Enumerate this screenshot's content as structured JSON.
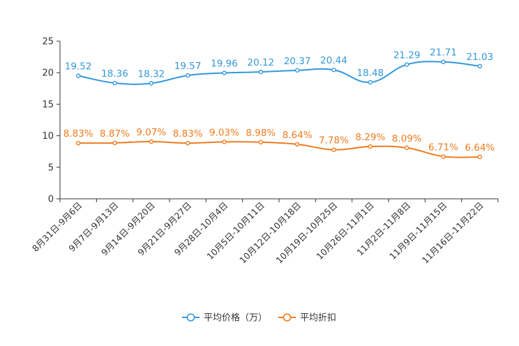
{
  "chart_data": {
    "type": "line",
    "categories": [
      "8月31日-9月6日",
      "9月7日-9月13日",
      "9月14日-9月20日",
      "9月21日-9月27日",
      "9月28日-10月4日",
      "10月5日-10月11日",
      "10月12日-10月18日",
      "10月19日-10月25日",
      "10月26日-11月1日",
      "11月2日-11月8日",
      "11月9日-11月15日",
      "11月16日-11月22日"
    ],
    "series": [
      {
        "name": "平均价格（万）",
        "color": "#3398DB",
        "values": [
          19.52,
          18.36,
          18.32,
          19.57,
          19.96,
          20.12,
          20.37,
          20.44,
          18.48,
          21.29,
          21.71,
          21.03
        ],
        "labels": [
          "19.52",
          "18.36",
          "18.32",
          "19.57",
          "19.96",
          "20.12",
          "20.37",
          "20.44",
          "18.48",
          "21.29",
          "21.71",
          "21.03"
        ]
      },
      {
        "name": "平均折扣",
        "color": "#F07B1E",
        "values": [
          8.83,
          8.87,
          9.07,
          8.83,
          9.03,
          8.98,
          8.64,
          7.78,
          8.29,
          8.09,
          6.71,
          6.64
        ],
        "labels": [
          "8.83%",
          "8.87%",
          "9.07%",
          "8.83%",
          "9.03%",
          "8.98%",
          "8.64%",
          "7.78%",
          "8.29%",
          "8.09%",
          "6.71%",
          "6.64%"
        ]
      }
    ],
    "yticks": [
      "0",
      "5",
      "10",
      "15",
      "20",
      "25"
    ],
    "ylim": [
      0,
      25
    ],
    "grid": false,
    "legend_position": "bottom-center",
    "title": "",
    "xlabel": "",
    "ylabel": ""
  }
}
